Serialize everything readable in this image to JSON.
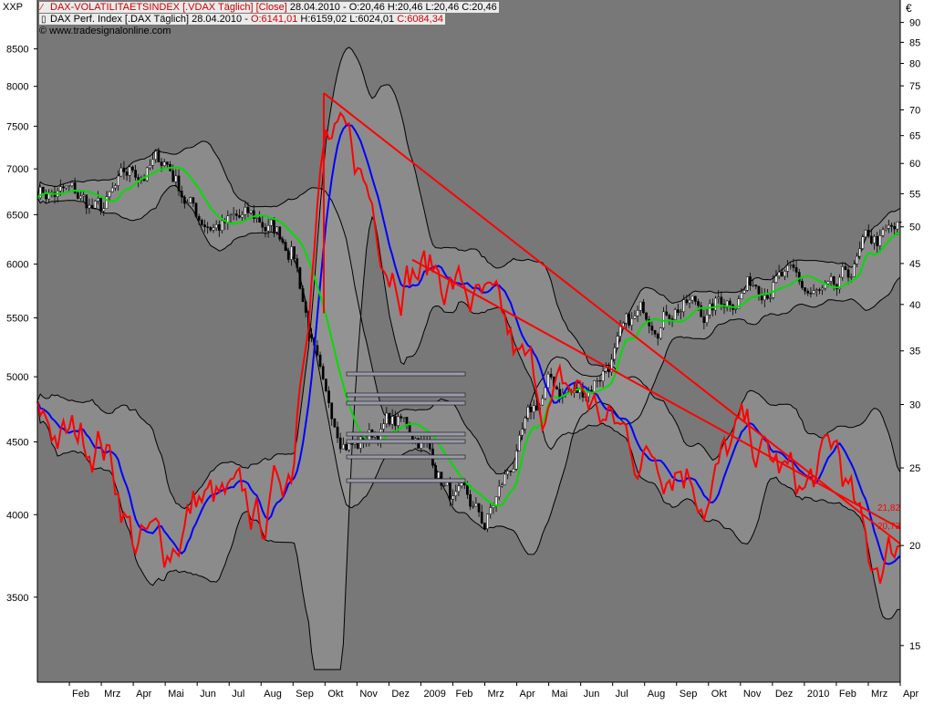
{
  "corner_left": "XXP",
  "corner_right": "€",
  "legend": {
    "row1": {
      "name": "DAX-VOLATILITAETSINDEX [.VDAX  Täglich] [Close]",
      "date": "28.04.2010",
      "values": "O:20,46 H:20,46 L:20,46 C:20,46"
    },
    "row2": {
      "name": "DAX Perf. Index [.DAX  Täglich]",
      "date": "28.04.2010",
      "open": "O:6141,01",
      "hl": "H:6159,02 L:6024,01",
      "close": "C:6084,34"
    },
    "row3": "© www.tradesignalonline.com"
  },
  "colors": {
    "panel_bg": "#787878",
    "band_fill": "#9a9a9a",
    "band_line": "#000000",
    "vdax_line": "#ff0000",
    "vdax_ma": "#0000ff",
    "dax_ma": "#00dd00",
    "trendline": "#ff0000",
    "candle_up": "#ffffff",
    "candle_down": "#000000"
  },
  "chart_data": {
    "type": "line",
    "left_axis": {
      "scale": "log",
      "ticks": [
        3500,
        4000,
        4500,
        5000,
        5500,
        6000,
        6500,
        7000,
        7500,
        8000,
        8500
      ],
      "range": [
        3050,
        9200
      ]
    },
    "right_axis": {
      "scale": "log",
      "ticks": [
        15,
        20,
        25,
        30,
        35,
        40,
        45,
        50,
        55,
        60,
        65,
        70,
        75,
        80,
        85,
        90
      ],
      "range": [
        13.5,
        96
      ]
    },
    "x_labels": [
      "Feb",
      "Mrz",
      "Apr",
      "Mai",
      "Jun",
      "Jul",
      "Aug",
      "Sep",
      "Okt",
      "Nov",
      "Dez",
      "2009",
      "Feb",
      "Mrz",
      "Apr",
      "Mai",
      "Jun",
      "Jul",
      "Aug",
      "Sep",
      "Okt",
      "Nov",
      "Dez",
      "2010",
      "Feb",
      "Mrz",
      "Apr"
    ],
    "trendline_labels": [
      "21,82",
      "20,73"
    ],
    "dax_series": {
      "name": "DAX Perf. Index",
      "x": [
        "2008-01",
        "2008-02",
        "2008-03",
        "2008-04",
        "2008-05",
        "2008-06",
        "2008-07",
        "2008-08",
        "2008-09",
        "2008-10",
        "2008-11",
        "2008-12",
        "2009-01",
        "2009-02",
        "2009-03",
        "2009-04",
        "2009-05",
        "2009-06",
        "2009-07",
        "2009-08",
        "2009-09",
        "2009-10",
        "2009-11",
        "2009-12",
        "2010-01",
        "2010-02",
        "2010-03",
        "2010-04"
      ],
      "values": [
        6800,
        6700,
        6500,
        6900,
        7100,
        6500,
        6400,
        6400,
        6200,
        4700,
        4500,
        4650,
        4550,
        4100,
        3900,
        4400,
        4900,
        4850,
        5200,
        5500,
        5700,
        5550,
        5800,
        5950,
        5700,
        5600,
        6150,
        6280
      ]
    },
    "vdax_series": {
      "name": "DAX-VOLATILITAETSINDEX",
      "x": [
        "2008-01",
        "2008-02",
        "2008-03",
        "2008-04",
        "2008-05",
        "2008-06",
        "2008-07",
        "2008-08",
        "2008-09",
        "2008-10",
        "2008-11",
        "2008-12",
        "2009-01",
        "2009-02",
        "2009-03",
        "2009-04",
        "2009-05",
        "2009-06",
        "2009-07",
        "2009-08",
        "2009-09",
        "2009-10",
        "2009-11",
        "2009-12",
        "2010-01",
        "2010-02",
        "2010-03",
        "2010-04"
      ],
      "values": [
        29,
        27,
        28,
        20.5,
        19.5,
        23,
        22,
        21,
        26,
        65,
        58,
        48,
        45,
        43,
        39,
        33,
        30,
        31,
        28,
        26,
        27,
        24,
        27,
        25,
        23,
        26,
        18.5,
        20.46
      ]
    }
  }
}
